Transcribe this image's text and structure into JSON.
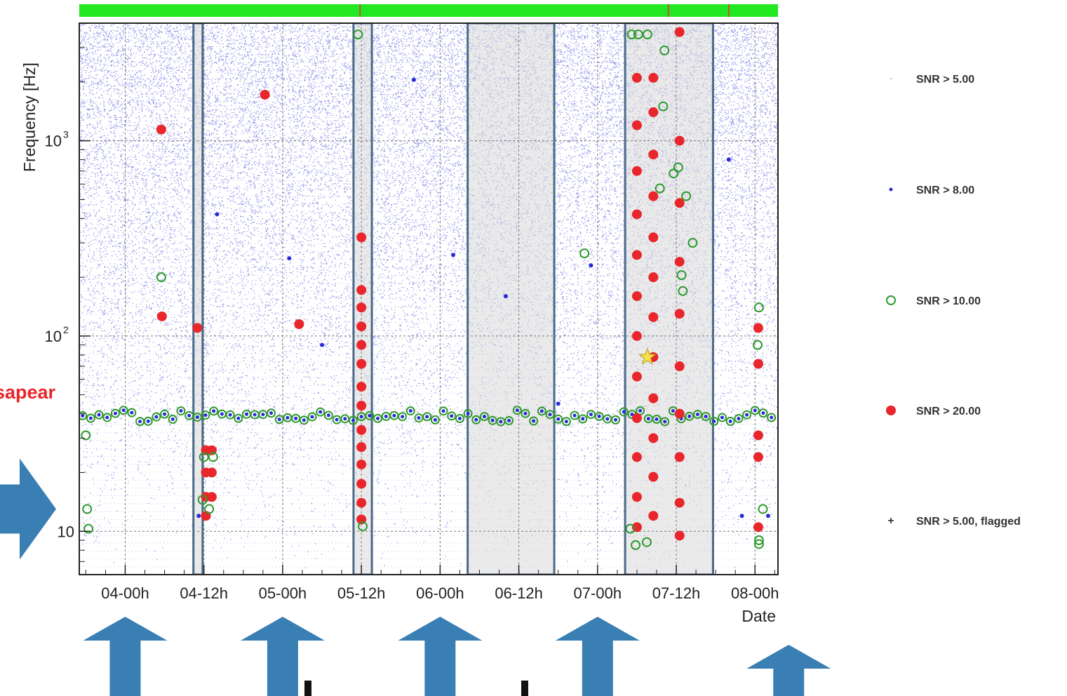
{
  "chart_data": {
    "type": "scatter",
    "title": "",
    "xlabel": "Date",
    "ylabel": "Frequency [Hz]",
    "x_unit": "hours from 04-00h",
    "xlim": [
      -7,
      99.5
    ],
    "ylim": [
      6,
      4000
    ],
    "yscale": "log",
    "x_ticks": [
      {
        "label": "04-00h",
        "value": 0
      },
      {
        "label": "04-12h",
        "value": 12
      },
      {
        "label": "05-00h",
        "value": 24
      },
      {
        "label": "05-12h",
        "value": 36
      },
      {
        "label": "06-00h",
        "value": 48
      },
      {
        "label": "06-12h",
        "value": 60
      },
      {
        "label": "07-00h",
        "value": 72
      },
      {
        "label": "07-12h",
        "value": 84
      },
      {
        "label": "08-00h",
        "value": 96
      }
    ],
    "y_ticks": [
      {
        "label": "10",
        "value": 10
      },
      {
        "label": "10",
        "sup": "2",
        "value": 100
      },
      {
        "label": "10",
        "sup": "3",
        "value": 1000
      }
    ],
    "grid": true,
    "legend": {
      "placement": "right",
      "entries": [
        {
          "label": "SNR > 5.00",
          "marker": "tiny-dot",
          "color": "#9aa2e8"
        },
        {
          "label": "SNR > 8.00",
          "marker": "dot",
          "color": "#2a2ad8"
        },
        {
          "label": "SNR > 10.00",
          "marker": "open-circle",
          "color": "#2e9a2e"
        },
        {
          "label": "SNR > 20.00",
          "marker": "filled-circle",
          "color": "#e8262b"
        },
        {
          "label": "SNR > 5.00, flagged",
          "marker": "plus",
          "color": "#222222"
        }
      ]
    },
    "shaded_segments": [
      {
        "x_start": 10.4,
        "x_end": 11.8
      },
      {
        "x_start": 34.8,
        "x_end": 37.6
      },
      {
        "x_start": 52.2,
        "x_end": 65.4
      },
      {
        "x_start": 76.2,
        "x_end": 89.6
      }
    ],
    "status_bar": {
      "color": "#22e822",
      "marker_color": "#c0542a",
      "marker_x": [
        35.8,
        82.8,
        92.0
      ]
    },
    "horizontal_band_hz": 39,
    "series": [
      {
        "name": "SNR > 20.00",
        "points": [
          {
            "x": 5.5,
            "y": 1140
          },
          {
            "x": 21.3,
            "y": 1720
          },
          {
            "x": 5.6,
            "y": 126
          },
          {
            "x": 11.0,
            "y": 110
          },
          {
            "x": 26.5,
            "y": 115
          },
          {
            "x": 12.3,
            "y": 26
          },
          {
            "x": 13.2,
            "y": 26
          },
          {
            "x": 12.3,
            "y": 20
          },
          {
            "x": 13.2,
            "y": 20
          },
          {
            "x": 12.3,
            "y": 15
          },
          {
            "x": 13.2,
            "y": 15
          },
          {
            "x": 12.3,
            "y": 12
          },
          {
            "x": 36.0,
            "y": 320
          },
          {
            "x": 36.0,
            "y": 172
          },
          {
            "x": 36.0,
            "y": 140
          },
          {
            "x": 36.0,
            "y": 112
          },
          {
            "x": 36.0,
            "y": 90
          },
          {
            "x": 36.0,
            "y": 72
          },
          {
            "x": 36.0,
            "y": 55
          },
          {
            "x": 36.0,
            "y": 44
          },
          {
            "x": 36.0,
            "y": 33
          },
          {
            "x": 36.0,
            "y": 27
          },
          {
            "x": 36.0,
            "y": 22
          },
          {
            "x": 36.0,
            "y": 17.5
          },
          {
            "x": 36.0,
            "y": 14
          },
          {
            "x": 36.0,
            "y": 11.5
          },
          {
            "x": 78.0,
            "y": 2100
          },
          {
            "x": 78.0,
            "y": 1200
          },
          {
            "x": 78.0,
            "y": 700
          },
          {
            "x": 78.0,
            "y": 420
          },
          {
            "x": 78.0,
            "y": 260
          },
          {
            "x": 78.0,
            "y": 160
          },
          {
            "x": 78.0,
            "y": 100
          },
          {
            "x": 78.0,
            "y": 62
          },
          {
            "x": 78.0,
            "y": 38
          },
          {
            "x": 78.0,
            "y": 24
          },
          {
            "x": 78.0,
            "y": 15
          },
          {
            "x": 78.0,
            "y": 10.5
          },
          {
            "x": 80.5,
            "y": 2100
          },
          {
            "x": 80.5,
            "y": 1400
          },
          {
            "x": 80.5,
            "y": 850
          },
          {
            "x": 80.5,
            "y": 520
          },
          {
            "x": 80.5,
            "y": 320
          },
          {
            "x": 80.5,
            "y": 200
          },
          {
            "x": 80.5,
            "y": 125
          },
          {
            "x": 80.5,
            "y": 78
          },
          {
            "x": 80.5,
            "y": 48
          },
          {
            "x": 80.5,
            "y": 30
          },
          {
            "x": 80.5,
            "y": 19
          },
          {
            "x": 80.5,
            "y": 12
          },
          {
            "x": 84.5,
            "y": 3600
          },
          {
            "x": 84.5,
            "y": 1000
          },
          {
            "x": 84.5,
            "y": 480
          },
          {
            "x": 84.5,
            "y": 240
          },
          {
            "x": 84.5,
            "y": 130
          },
          {
            "x": 84.5,
            "y": 70
          },
          {
            "x": 84.5,
            "y": 40
          },
          {
            "x": 84.5,
            "y": 24
          },
          {
            "x": 84.5,
            "y": 14
          },
          {
            "x": 84.5,
            "y": 9.5
          },
          {
            "x": 96.5,
            "y": 110
          },
          {
            "x": 96.5,
            "y": 72
          },
          {
            "x": 96.5,
            "y": 31
          },
          {
            "x": 96.5,
            "y": 24
          },
          {
            "x": 96.5,
            "y": 10.5
          }
        ]
      },
      {
        "name": "SNR > 10.00",
        "points": [
          {
            "x": 5.5,
            "y": 200
          },
          {
            "x": -6.0,
            "y": 31
          },
          {
            "x": -5.8,
            "y": 13
          },
          {
            "x": -5.6,
            "y": 10.3
          },
          {
            "x": 12.0,
            "y": 24
          },
          {
            "x": 13.4,
            "y": 24
          },
          {
            "x": 12.8,
            "y": 13
          },
          {
            "x": 11.8,
            "y": 14.5
          },
          {
            "x": 35.5,
            "y": 3500
          },
          {
            "x": 36.2,
            "y": 10.6
          },
          {
            "x": 77.2,
            "y": 3500
          },
          {
            "x": 78.2,
            "y": 3500
          },
          {
            "x": 79.6,
            "y": 3500
          },
          {
            "x": 82.2,
            "y": 2900
          },
          {
            "x": 82.0,
            "y": 1500
          },
          {
            "x": 84.3,
            "y": 730
          },
          {
            "x": 81.5,
            "y": 570
          },
          {
            "x": 83.6,
            "y": 680
          },
          {
            "x": 85.5,
            "y": 520
          },
          {
            "x": 86.5,
            "y": 300
          },
          {
            "x": 84.8,
            "y": 205
          },
          {
            "x": 85.0,
            "y": 170
          },
          {
            "x": 70.0,
            "y": 265
          },
          {
            "x": 77.0,
            "y": 10.3
          },
          {
            "x": 77.8,
            "y": 8.5
          },
          {
            "x": 79.5,
            "y": 8.8
          },
          {
            "x": 96.6,
            "y": 140
          },
          {
            "x": 96.4,
            "y": 90
          },
          {
            "x": 97.2,
            "y": 13
          },
          {
            "x": 96.6,
            "y": 8.6
          },
          {
            "x": 96.6,
            "y": 9.0
          }
        ]
      },
      {
        "name": "SNR > 8.00",
        "points": [
          {
            "x": 25.0,
            "y": 250
          },
          {
            "x": 50.0,
            "y": 260
          },
          {
            "x": 71.0,
            "y": 230
          },
          {
            "x": 14.0,
            "y": 420
          },
          {
            "x": 44.0,
            "y": 2050
          },
          {
            "x": 92.0,
            "y": 800
          },
          {
            "x": 11.2,
            "y": 12
          },
          {
            "x": 98.0,
            "y": 12
          },
          {
            "x": 94.0,
            "y": 12
          },
          {
            "x": 58.0,
            "y": 160
          },
          {
            "x": 30.0,
            "y": 90
          },
          {
            "x": 66.0,
            "y": 45
          }
        ]
      }
    ]
  },
  "annotations": {
    "left_note": "sapear",
    "arrows_up_x": [
      0,
      24,
      48,
      72,
      96
    ],
    "left_arrow_y_hz": 13
  },
  "colors": {
    "background_dots": "#3a3ad8",
    "shaded_fill": "#d8d8d8",
    "shaded_border": "#4a6a8a",
    "arrow": "#3a7fb4"
  }
}
